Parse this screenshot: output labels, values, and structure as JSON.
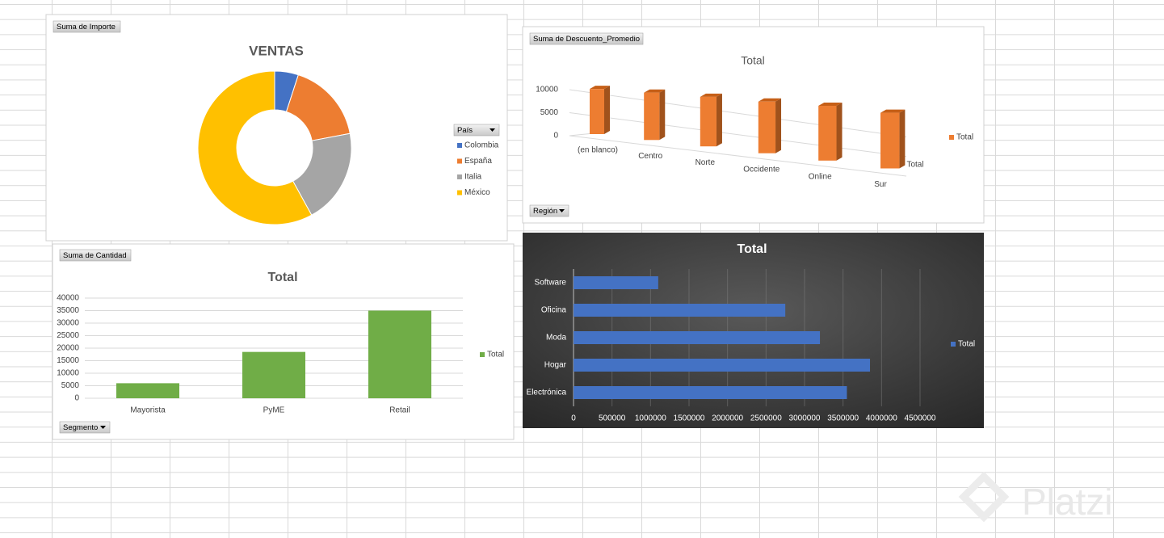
{
  "chart_data": [
    {
      "type": "doughnut",
      "field_button": "Suma de Importe",
      "title": "VENTAS",
      "filter_button": "País",
      "categories": [
        "Colombia",
        "España",
        "Italia",
        "México"
      ],
      "values": [
        5,
        17,
        20,
        58
      ],
      "colors": [
        "#4472c4",
        "#ed7d31",
        "#a5a5a5",
        "#ffc000"
      ]
    },
    {
      "type": "bar3d",
      "field_button": "Suma de Descuento_Promedio",
      "title": "Total",
      "filter_button": "Región",
      "categories": [
        "(en blanco)",
        "Centro",
        "Norte",
        "Occidente",
        "Online",
        "Sur"
      ],
      "series": [
        {
          "name": "Total",
          "color": "#ed7d31",
          "values": [
            9800,
            9700,
            9600,
            9500,
            9600,
            9300
          ]
        }
      ],
      "ylim": [
        0,
        10000
      ],
      "yticks": [
        0,
        5000,
        10000
      ],
      "grid": true
    },
    {
      "type": "bar",
      "field_button": "Suma de Cantidad",
      "title": "Total",
      "filter_button": "Segmento",
      "categories": [
        "Mayorista",
        "PyME",
        "Retail"
      ],
      "series": [
        {
          "name": "Total",
          "color": "#70ad47",
          "values": [
            6000,
            18500,
            35000
          ]
        }
      ],
      "ylim": [
        0,
        40000
      ],
      "yticks": [
        0,
        5000,
        10000,
        15000,
        20000,
        25000,
        30000,
        35000,
        40000
      ],
      "grid": true
    },
    {
      "type": "barh",
      "title": "Total",
      "categories": [
        "Electrónica",
        "Hogar",
        "Moda",
        "Oficina",
        "Software"
      ],
      "series": [
        {
          "name": "Total",
          "color": "#4472c4",
          "values": [
            3550000,
            3850000,
            3200000,
            2750000,
            1100000
          ]
        }
      ],
      "xlim": [
        0,
        4500000
      ],
      "xticks": [
        0,
        500000,
        1000000,
        1500000,
        2000000,
        2500000,
        3000000,
        3500000,
        4000000,
        4500000
      ],
      "grid": true
    }
  ],
  "watermark": "Platzi"
}
